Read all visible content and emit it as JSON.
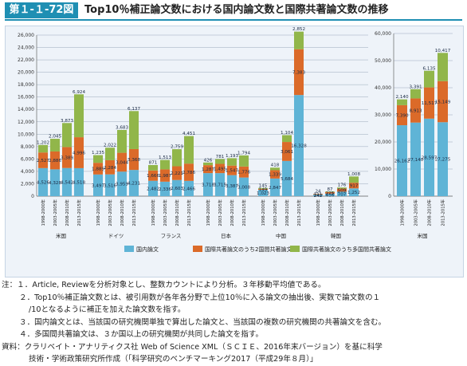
{
  "header": {
    "tag": "第１-１-72図",
    "title": "Top10％補正論文数における国内論文数と国際共著論文数の推移"
  },
  "chart_data": [
    {
      "type": "bar",
      "stacked": true,
      "ylim": [
        0,
        26000
      ],
      "yticks": [
        0,
        2000,
        4000,
        6000,
        8000,
        10000,
        12000,
        14000,
        16000,
        18000,
        20000,
        22000,
        24000,
        26000
      ],
      "ytick_labels": [
        "0",
        "2,000",
        "4,000",
        "6,000",
        "8,000",
        "10,000",
        "12,000",
        "14,000",
        "16,000",
        "18,000",
        "20,000",
        "22,000",
        "24,000",
        "26,000"
      ],
      "grid": true,
      "periods": [
        "1998-2000年",
        "2003-2005年",
        "2008-2010年",
        "2013-2015年"
      ],
      "groups": [
        {
          "name": "米国",
          "domestic": [
            4526,
            4328,
            4542,
            4518
          ],
          "bilateral": [
            2527,
            2886,
            3389,
            4996
          ],
          "multilateral": [
            1202,
            2045,
            3873,
            6924
          ],
          "domestic_labels": [
            "4,526",
            "4,328",
            "4,542",
            "4,518"
          ],
          "bilateral_labels": [
            "2,527",
            "2,886",
            "3,389",
            "4,996"
          ],
          "multilateral_labels": [
            "1,202",
            "2,045",
            "3,873",
            "6,924"
          ]
        },
        {
          "name": "ドイツ",
          "domestic": [
            3497,
            3516,
            3959,
            4231
          ],
          "bilateral": [
            1889,
            2284,
            3044,
            3368
          ],
          "multilateral": [
            1235,
            2022,
            3683,
            6137
          ],
          "domestic_labels": [
            "3,497",
            "3,516",
            "3,959",
            "4,231"
          ],
          "bilateral_labels": [
            "1,889",
            "2,284",
            "3,044",
            "3,368"
          ],
          "multilateral_labels": [
            "1,235",
            "2,022",
            "3,683",
            "6,137"
          ]
        },
        {
          "name": "フランス",
          "domestic": [
            2482,
            2336,
            2603,
            2466
          ],
          "bilateral": [
            1666,
            1987,
            2221,
            2786
          ],
          "multilateral": [
            871,
            1513,
            2759,
            4451
          ],
          "domestic_labels": [
            "2,482",
            "2,336",
            "2,603",
            "2,466"
          ],
          "bilateral_labels": [
            "1,666",
            "1,987",
            "2,221",
            "2,786"
          ],
          "multilateral_labels": [
            "871",
            "1,513",
            "2,759",
            "4,451"
          ]
        },
        {
          "name": "日本",
          "domestic": [
            3718,
            3715,
            3387,
            3008
          ],
          "bilateral": [
            1287,
            1495,
            1547,
            1776
          ],
          "multilateral": [
            426,
            781,
            1193,
            1794
          ],
          "domestic_labels": [
            "3,718",
            "3,715",
            "3,387",
            "3,008"
          ],
          "bilateral_labels": [
            "1,287",
            "1,495",
            "1,547",
            "1,776"
          ],
          "multilateral_labels": [
            "426",
            "781",
            "1,193",
            "1,794"
          ]
        },
        {
          "name": "中国",
          "domestic": [
            1023,
            2847,
            5684,
            16328
          ],
          "bilateral": [
            149,
            1339,
            3061,
            7383
          ],
          "multilateral": [
            145,
            418,
            1104,
            2852
          ],
          "domestic_labels": [
            "1,023",
            "2,847",
            "5,684",
            "16,328"
          ],
          "bilateral_labels": [
            "149",
            "1,339",
            "3,061",
            "7,383"
          ],
          "multilateral_labels": [
            "145",
            "418",
            "1,104",
            "2,852"
          ]
        },
        {
          "name": "韓国",
          "domestic": [
            242,
            416,
            707,
            1252
          ],
          "bilateral": [
            111,
            225,
            509,
            917
          ],
          "multilateral": [
            24,
            87,
            176,
            1008
          ],
          "domestic_labels": [
            "242",
            "416",
            "707",
            "1,252"
          ],
          "bilateral_labels": [
            "111",
            "225",
            "509",
            "917"
          ],
          "multilateral_labels": [
            "24",
            "87",
            "176",
            "1,008"
          ]
        }
      ],
      "legend": [
        "国内論文",
        "国際共著論文のうち2国間共著論文",
        "国際共著論文のうち多国間共著論文"
      ],
      "legend_position": "bottom"
    },
    {
      "type": "bar",
      "stacked": true,
      "ylim": [
        0,
        60000
      ],
      "yticks": [
        0,
        10000,
        20000,
        30000,
        40000,
        50000,
        60000
      ],
      "ytick_labels": [
        "0",
        "10,000",
        "20,000",
        "30,000",
        "40,000",
        "50,000",
        "60,000"
      ],
      "grid": true,
      "periods": [
        "1998-2000年",
        "2003-2005年",
        "2008-2010年",
        "2013-2015年"
      ],
      "groups": [
        {
          "name": "米国",
          "domestic": [
            26162,
            27140,
            28597,
            27275
          ],
          "bilateral": [
            7390,
            8913,
            11517,
            15149
          ],
          "multilateral": [
            2140,
            3391,
            6135,
            10417
          ],
          "domestic_labels": [
            "26,162",
            "27,140",
            "28,597",
            "27,275"
          ],
          "bilateral_labels": [
            "7,390",
            "8,913",
            "11,517",
            "15,149"
          ],
          "multilateral_labels": [
            "2,140",
            "3,391",
            "6,135",
            "10,417"
          ]
        }
      ]
    }
  ],
  "colors": {
    "domestic": "#5fb4d6",
    "bilateral": "#db6a29",
    "multilateral": "#91b64a",
    "accent": "#1f8fb3",
    "panel": "#eef3f9"
  },
  "notes": {
    "n1": "注：１．Article, Reviewを分析対象とし、整数カウントにより分析。３年移動平均値である。",
    "n2a": "２．Top10％補正論文数とは、被引用数が各年各分野で上位10％に入る論文の抽出後、実数で論文数の１",
    "n2b": "/10となるように補正を加えた論文数を指す。",
    "n3": "３．国内論文とは、当該国の研究機関単独で算出した論文と、当該国の複数の研究機関の共著論文を含む。",
    "n4": "４．多国間共著論文は、３か国以上の研究機関が共同した論文を指す。",
    "s1": "資料：クラリベイト・アナリティクス社 Web of Science XML（ＳＣＩＥ、2016年末バージョン）を基に科学",
    "s2": "技術・学術政策研究所作成（「科学研究のベンチマーキング2017（平成29年８月）」"
  }
}
